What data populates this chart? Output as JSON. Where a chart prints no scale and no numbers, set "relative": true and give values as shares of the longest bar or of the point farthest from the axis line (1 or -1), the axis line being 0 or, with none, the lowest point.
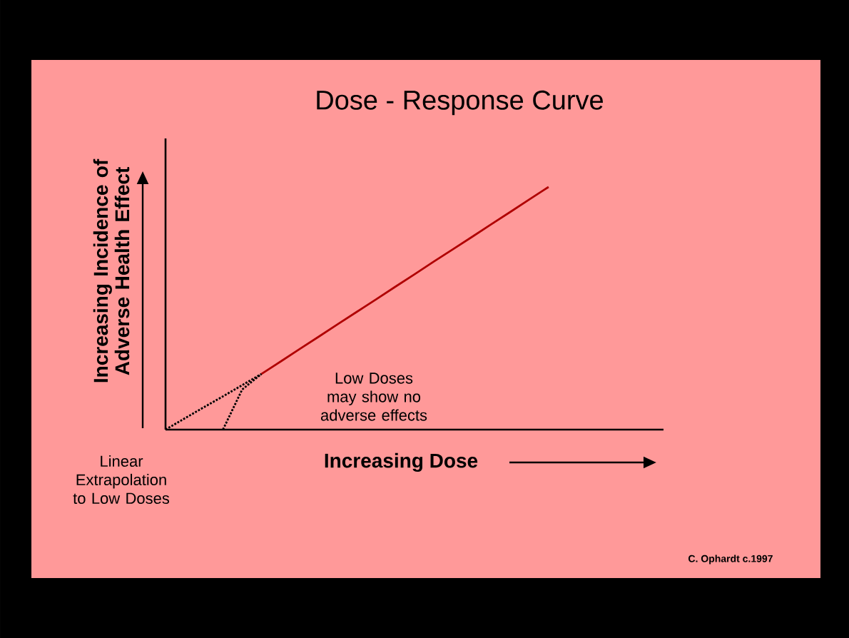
{
  "chart_data": {
    "type": "line",
    "title": "Dose - Response Curve",
    "xlabel": "Increasing Dose",
    "ylabel": "Increasing Incidence of Adverse Health Effect",
    "relative": true,
    "categories": [
      null,
      null,
      null,
      null,
      null,
      null,
      null,
      null,
      null,
      null,
      null,
      null,
      null,
      null,
      null,
      null,
      null,
      null,
      null,
      null,
      null,
      null,
      null,
      null,
      null,
      null,
      null
    ],
    "annotations": [
      "Linear Extrapolation to Low Doses",
      "Low Doses may show no adverse effects",
      "C. Ophardt c.1997"
    ],
    "series": [
      {
        "color": "#b00000",
        "line_style": "solid",
        "values": [
          null,
          null,
          null,
          null,
          null,
          0.229,
          0.28,
          0.332,
          0.383,
          0.435,
          0.486,
          0.537,
          0.589,
          0.64,
          0.692,
          0.743,
          0.794,
          0.846,
          0.897,
          0.949,
          1,
          null,
          null,
          null,
          null,
          null,
          null
        ]
      },
      {
        "color": "#000000",
        "line_style": "dotted",
        "values": [
          0,
          0.046,
          0.092,
          0.137,
          0.183,
          0.229,
          null,
          null,
          null,
          null,
          null,
          null,
          null,
          null,
          null,
          null,
          null,
          null,
          null,
          null,
          null,
          null,
          null,
          null,
          null,
          null,
          null
        ]
      },
      {
        "color": "#000000",
        "line_style": "dotted",
        "values": [
          null,
          null,
          null,
          0,
          0.165,
          0.229,
          null,
          null,
          null,
          null,
          null,
          null,
          null,
          null,
          null,
          null,
          null,
          null,
          null,
          null,
          null,
          null,
          null,
          null,
          null,
          null,
          null
        ]
      }
    ]
  }
}
